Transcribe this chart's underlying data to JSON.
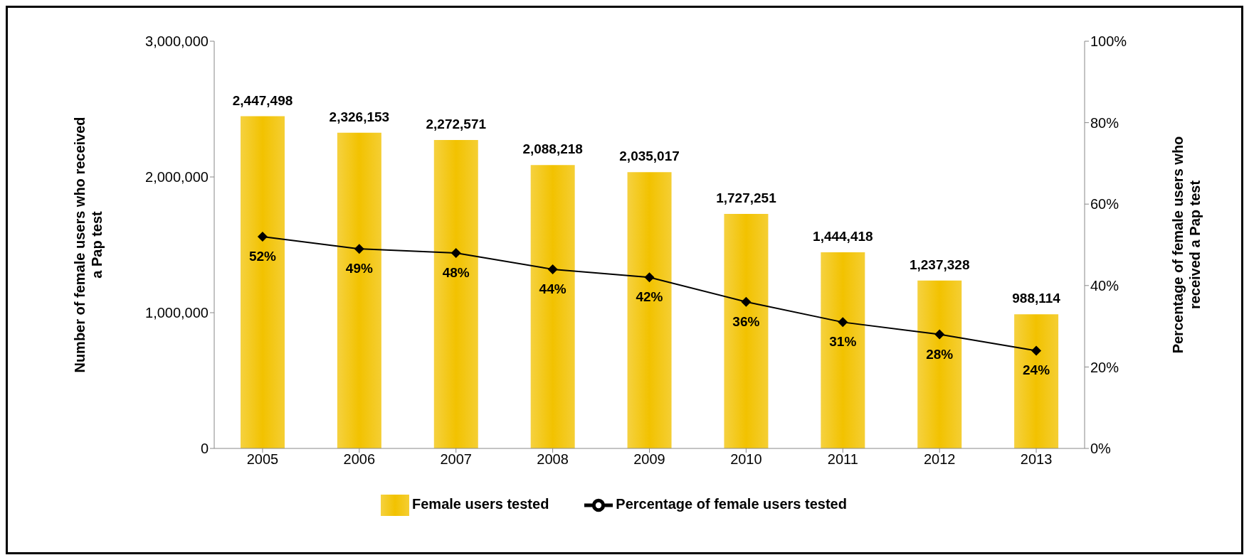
{
  "chart_data": {
    "type": "bar",
    "ylabel": "Number of female users who received a Pap test",
    "y2label": "Percentage of female users who received a Pap test",
    "categories": [
      "2005",
      "2006",
      "2007",
      "2008",
      "2009",
      "2010",
      "2011",
      "2012",
      "2013"
    ],
    "series": [
      {
        "name": "Female users tested",
        "color": "#f2c200",
        "values": [
          2447498,
          2326153,
          2272571,
          2088218,
          2035017,
          1727251,
          1444418,
          1237328,
          988114
        ],
        "value_labels": [
          "2,447,498",
          "2,326,153",
          "2,272,571",
          "2,088,218",
          "2,035,017",
          "1,727,251",
          "1,444,418",
          "1,237,328",
          "988,114"
        ]
      },
      {
        "name": "Percentage of female users tested",
        "type": "line",
        "axis": "y2",
        "color": "#000000",
        "marker": "diamond",
        "values": [
          52,
          49,
          48,
          44,
          42,
          36,
          31,
          28,
          24
        ],
        "value_labels": [
          "52%",
          "49%",
          "48%",
          "44%",
          "42%",
          "36%",
          "31%",
          "28%",
          "24%"
        ]
      }
    ],
    "ylim": [
      0,
      3000000
    ],
    "yticks": [
      {
        "value": 0,
        "label": "0"
      },
      {
        "value": 1000000,
        "label": "1,000,000"
      },
      {
        "value": 2000000,
        "label": "2,000,000"
      },
      {
        "value": 3000000,
        "label": "3,000,000"
      }
    ],
    "y2lim": [
      0,
      100
    ],
    "y2ticks": [
      {
        "value": 0,
        "label": "0%"
      },
      {
        "value": 20,
        "label": "20%"
      },
      {
        "value": 40,
        "label": "40%"
      },
      {
        "value": 60,
        "label": "60%"
      },
      {
        "value": 80,
        "label": "80%"
      },
      {
        "value": 100,
        "label": "100%"
      }
    ],
    "grid": false,
    "legend": "bottom"
  }
}
